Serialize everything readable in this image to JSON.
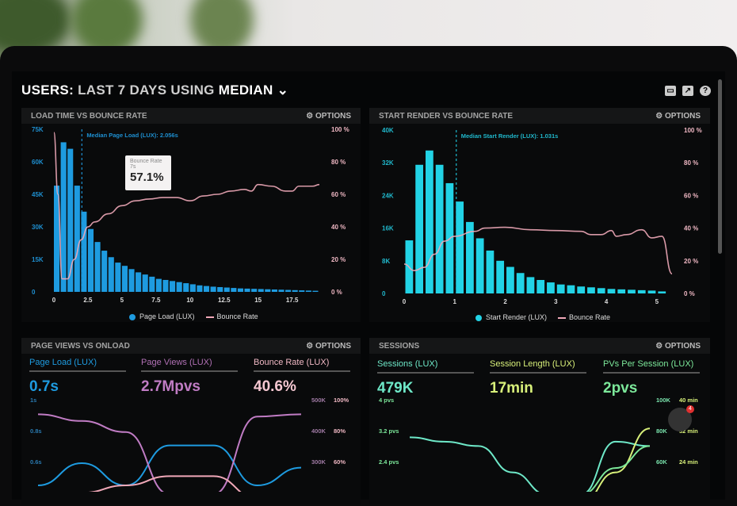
{
  "header": {
    "title_prefix": "USERS:",
    "title_main": "LAST 7 DAYS USING",
    "title_suffix": "MEDIAN",
    "icons": [
      "monitor-icon",
      "share-icon",
      "help-icon"
    ]
  },
  "options_label": "OPTIONS",
  "notification_count": "4",
  "colors": {
    "page_load": "#1e9be0",
    "start_render": "#22d3e6",
    "bounce": "#f0a8b8",
    "page_views": "#c07cc4",
    "sessions": "#6ee8c8",
    "session_length": "#d8f07a",
    "pvs": "#7ce89a"
  },
  "chart_data": [
    {
      "type": "bar",
      "title": "LOAD TIME VS BOUNCE RATE",
      "annotation": "Median Page Load (LUX): 2.056s",
      "median": 2.056,
      "tooltip": {
        "label": "Bounce Rate",
        "x": "7s",
        "value": "57.1%"
      },
      "xlim": [
        0,
        19.5
      ],
      "ylim": [
        0,
        75000
      ],
      "y2lim": [
        0,
        100
      ],
      "xticks": [
        "0",
        "2.5",
        "5",
        "7.5",
        "10",
        "12.5",
        "15",
        "17.5"
      ],
      "yticks": [
        "0",
        "15K",
        "30K",
        "45K",
        "60K",
        "75K"
      ],
      "y2ticks": [
        "0 %",
        "20 %",
        "40 %",
        "60 %",
        "80 %",
        "100 %"
      ],
      "legend": [
        "Page Load (LUX)",
        "Bounce Rate"
      ],
      "legend_position": "bottom",
      "series": [
        {
          "name": "Page Load (LUX)",
          "x": [
            0,
            0.5,
            1,
            1.5,
            2,
            2.5,
            3,
            3.5,
            4,
            4.5,
            5,
            5.5,
            6,
            6.5,
            7,
            7.5,
            8,
            8.5,
            9,
            9.5,
            10,
            10.5,
            11,
            11.5,
            12,
            12.5,
            13,
            13.5,
            14,
            14.5,
            15,
            15.5,
            16,
            16.5,
            17,
            17.5,
            18,
            18.5,
            19
          ],
          "values": [
            49000,
            69000,
            66000,
            49000,
            37000,
            29000,
            23000,
            19000,
            16000,
            13500,
            12000,
            10500,
            9000,
            8000,
            7000,
            6000,
            5500,
            5000,
            4500,
            4000,
            3500,
            3000,
            2700,
            2400,
            2200,
            2000,
            1800,
            1600,
            1500,
            1400,
            1300,
            1200,
            1100,
            1000,
            900,
            800,
            700,
            600,
            500
          ]
        },
        {
          "name": "Bounce Rate",
          "x": [
            0,
            0.3,
            0.6,
            1,
            1.5,
            2,
            2.5,
            3,
            4,
            5,
            6,
            7,
            8,
            9,
            10,
            11,
            12,
            13,
            14,
            14.5,
            15,
            16,
            17,
            17.5,
            18,
            19,
            19.5
          ],
          "values": [
            98,
            60,
            8,
            8,
            20,
            32,
            40,
            43,
            48,
            53,
            56,
            57.1,
            58,
            58,
            56,
            59,
            60,
            62,
            63,
            62,
            66,
            65,
            62,
            62,
            65,
            65,
            66
          ]
        }
      ]
    },
    {
      "type": "bar",
      "title": "START RENDER VS BOUNCE RATE",
      "annotation": "Median Start Render (LUX): 1.031s",
      "median": 1.031,
      "xlim": [
        0,
        5.3
      ],
      "ylim": [
        0,
        40000
      ],
      "y2lim": [
        0,
        100
      ],
      "xticks": [
        "0",
        "1",
        "2",
        "3",
        "4",
        "5"
      ],
      "yticks": [
        "0",
        "8K",
        "16K",
        "24K",
        "32K",
        "40K"
      ],
      "y2ticks": [
        "0 %",
        "20 %",
        "40 %",
        "60 %",
        "80 %",
        "100 %"
      ],
      "legend": [
        "Start Render (LUX)",
        "Bounce Rate"
      ],
      "legend_position": "bottom",
      "series": [
        {
          "name": "Start Render (LUX)",
          "x": [
            0.1,
            0.3,
            0.5,
            0.7,
            0.9,
            1.1,
            1.3,
            1.5,
            1.7,
            1.9,
            2.1,
            2.3,
            2.5,
            2.7,
            2.9,
            3.1,
            3.3,
            3.5,
            3.7,
            3.9,
            4.1,
            4.3,
            4.5,
            4.7,
            4.9,
            5.1
          ],
          "values": [
            13000,
            31500,
            35000,
            31500,
            27000,
            22500,
            17500,
            13500,
            10500,
            8000,
            6500,
            5000,
            4000,
            3300,
            2700,
            2200,
            2000,
            1700,
            1500,
            1300,
            1100,
            1000,
            900,
            800,
            700,
            500
          ]
        },
        {
          "name": "Bounce Rate",
          "x": [
            0,
            0.2,
            0.4,
            0.6,
            0.8,
            1,
            1.4,
            1.6,
            2,
            2.5,
            3,
            3.5,
            3.7,
            3.9,
            4.1,
            4.2,
            4.4,
            4.7,
            4.9,
            5.1,
            5.3
          ],
          "values": [
            18,
            14,
            16,
            24,
            32,
            35,
            38,
            40,
            40.5,
            39,
            38.5,
            38,
            36,
            36,
            38.5,
            35,
            36,
            39,
            34,
            35,
            12
          ]
        }
      ]
    },
    {
      "type": "line",
      "title": "PAGE VIEWS VS ONLOAD",
      "kpis": [
        {
          "label": "Page Load (LUX)",
          "value": "0.7s"
        },
        {
          "label": "Page Views (LUX)",
          "value": "2.7Mpvs"
        },
        {
          "label": "Bounce Rate (LUX)",
          "value": "40.6%"
        }
      ],
      "yticks": [
        "1s",
        "0.8s",
        "0.6s"
      ],
      "y2ticks_views": [
        "500K",
        "400K",
        "300K"
      ],
      "y2ticks_bounce": [
        "100%",
        "80%",
        "60%"
      ],
      "series": [
        {
          "name": "Page Load (LUX)",
          "values": [
            0.6,
            0.7,
            0.6,
            0.78,
            0.78,
            0.6,
            0.68
          ],
          "ylim": [
            0.5,
            1
          ]
        },
        {
          "name": "Page Views (LUX)",
          "values": [
            460,
            445,
            420,
            280,
            280,
            455,
            460
          ],
          "ylim": [
            250,
            500
          ]
        },
        {
          "name": "Bounce Rate (LUX)",
          "values": [
            45,
            48,
            52,
            57,
            57,
            45,
            40
          ],
          "ylim": [
            40,
            100
          ]
        }
      ]
    },
    {
      "type": "line",
      "title": "SESSIONS",
      "kpis": [
        {
          "label": "Sessions (LUX)",
          "value": "479K"
        },
        {
          "label": "Session Length (LUX)",
          "value": "17min"
        },
        {
          "label": "PVs Per Session (LUX)",
          "value": "2pvs"
        }
      ],
      "yticks": [
        "4 pvs",
        "3.2 pvs",
        "2.4 pvs"
      ],
      "y2ticks_sessions": [
        "100K",
        "80K",
        "60K"
      ],
      "y2ticks_length": [
        "40 min",
        "32 min",
        "24 min"
      ],
      "series": [
        {
          "name": "Sessions (LUX)",
          "values": [
            3.2,
            3.1,
            3.0,
            2.4,
            1.9,
            1.9,
            3.1,
            3.0
          ],
          "ylim": [
            1.6,
            4
          ]
        },
        {
          "name": "Session Length (LUX)",
          "values": [
            18,
            19,
            17,
            16,
            16,
            17,
            24,
            34
          ],
          "ylim": [
            16,
            40
          ]
        },
        {
          "name": "PVs Per Session (LUX)",
          "values": [
            1.9,
            1.9,
            1.9,
            1.85,
            1.85,
            1.9,
            2.5,
            3.0
          ],
          "ylim": [
            1.6,
            4
          ]
        }
      ]
    }
  ]
}
